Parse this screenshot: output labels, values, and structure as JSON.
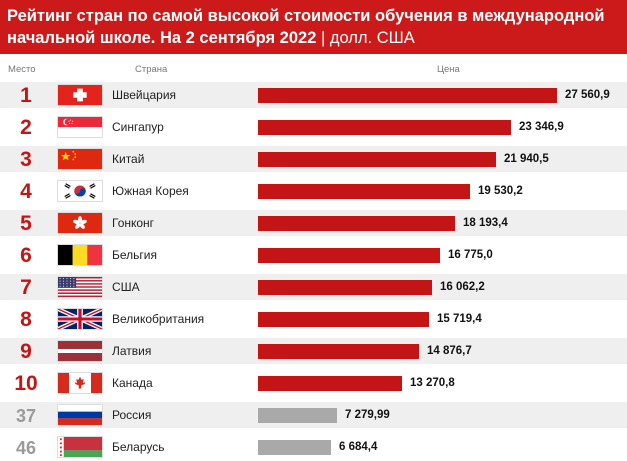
{
  "chart_data": {
    "type": "bar",
    "orientation": "horizontal",
    "title": "Рейтинг стран по самой высокой стоимости обучения в международной начальной школе. На 2 сентября 2022",
    "title_suffix": " | долл. США",
    "headers": {
      "place": "Место",
      "country": "Страна",
      "price": "Цена"
    },
    "colors": {
      "header": "#cc1a1a",
      "bar_top": "#c41414",
      "bar_other": "#a9a9a9",
      "rank_top": "#c41414",
      "rank_other": "#9a9a9a"
    },
    "xlim": [
      0,
      27560.9
    ],
    "rows": [
      {
        "rank": "1",
        "country": "Швейцария",
        "value": 27560.9,
        "label": "27 560,9",
        "flag": "switzerland-flag-icon",
        "highlight": true
      },
      {
        "rank": "2",
        "country": "Сингапур",
        "value": 23346.9,
        "label": "23 346,9",
        "flag": "singapore-flag-icon",
        "highlight": true
      },
      {
        "rank": "3",
        "country": "Китай",
        "value": 21940.5,
        "label": "21 940,5",
        "flag": "china-flag-icon",
        "highlight": true
      },
      {
        "rank": "4",
        "country": "Южная Корея",
        "value": 19530.2,
        "label": "19 530,2",
        "flag": "south-korea-flag-icon",
        "highlight": true
      },
      {
        "rank": "5",
        "country": "Гонконг",
        "value": 18193.4,
        "label": "18 193,4",
        "flag": "hong-kong-flag-icon",
        "highlight": true
      },
      {
        "rank": "6",
        "country": "Бельгия",
        "value": 16775.0,
        "label": "16 775,0",
        "flag": "belgium-flag-icon",
        "highlight": true
      },
      {
        "rank": "7",
        "country": "США",
        "value": 16062.2,
        "label": "16 062,2",
        "flag": "usa-flag-icon",
        "highlight": true
      },
      {
        "rank": "8",
        "country": "Великобритания",
        "value": 15719.4,
        "label": "15 719,4",
        "flag": "uk-flag-icon",
        "highlight": true
      },
      {
        "rank": "9",
        "country": "Латвия",
        "value": 14876.7,
        "label": "14 876,7",
        "flag": "latvia-flag-icon",
        "highlight": true
      },
      {
        "rank": "10",
        "country": "Канада",
        "value": 13270.8,
        "label": "13 270,8",
        "flag": "canada-flag-icon",
        "highlight": true
      },
      {
        "rank": "37",
        "country": "Россия",
        "value": 7279.99,
        "label": "7 279,99",
        "flag": "russia-flag-icon",
        "highlight": false
      },
      {
        "rank": "46",
        "country": "Беларусь",
        "value": 6684.4,
        "label": "6 684,4",
        "flag": "belarus-flag-icon",
        "highlight": false
      }
    ]
  }
}
